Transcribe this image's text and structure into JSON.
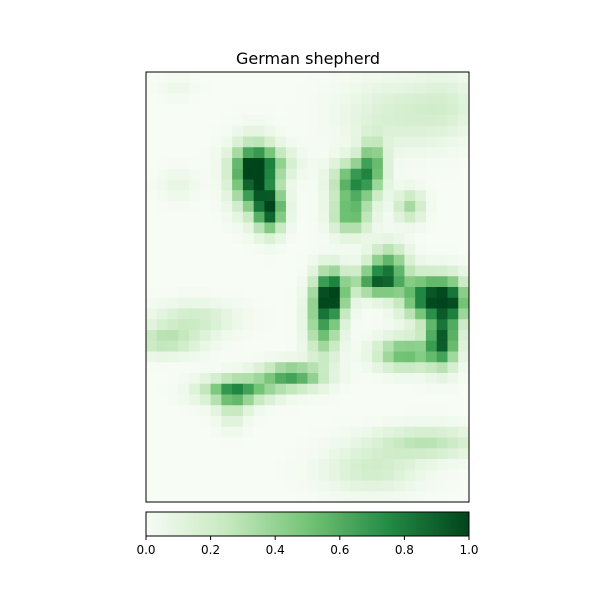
{
  "chart_data": {
    "type": "heatmap",
    "title": "German shepherd",
    "colormap": "Greens",
    "colormap_stops": [
      "#f7fcf5",
      "#c7e9c0",
      "#74c476",
      "#238b45",
      "#00441b"
    ],
    "value_range": [
      0,
      1
    ],
    "axes_ticks_visible": false,
    "colorbar": {
      "orientation": "horizontal",
      "placement": "bottom",
      "ticks": [
        0.0,
        0.2,
        0.4,
        0.6,
        0.8,
        1.0
      ],
      "tick_labels": [
        "0.0",
        "0.2",
        "0.4",
        "0.6",
        "0.8",
        "1.0"
      ]
    },
    "grid_size": [
      40,
      30
    ],
    "hotspots": [
      {
        "col": 10.0,
        "row": 9.8,
        "intensity": 0.95,
        "sigma_col": 1.3,
        "sigma_row": 2.0
      },
      {
        "col": 11.5,
        "row": 12.8,
        "intensity": 0.9,
        "sigma_col": 0.9,
        "sigma_row": 1.4
      },
      {
        "col": 11.0,
        "row": 8.5,
        "intensity": 0.4,
        "sigma_col": 1.8,
        "sigma_row": 1.0
      },
      {
        "col": 19.5,
        "row": 10.2,
        "intensity": 0.72,
        "sigma_col": 1.4,
        "sigma_row": 1.3
      },
      {
        "col": 21.0,
        "row": 8.3,
        "intensity": 0.5,
        "sigma_col": 0.8,
        "sigma_row": 1.4
      },
      {
        "col": 19.0,
        "row": 13.3,
        "intensity": 0.55,
        "sigma_col": 1.2,
        "sigma_row": 1.2
      },
      {
        "col": 24.5,
        "row": 12.5,
        "intensity": 0.35,
        "sigma_col": 0.9,
        "sigma_row": 1.0
      },
      {
        "col": 17.2,
        "row": 20.6,
        "intensity": 0.95,
        "sigma_col": 1.0,
        "sigma_row": 1.5
      },
      {
        "col": 16.5,
        "row": 23.5,
        "intensity": 0.55,
        "sigma_col": 1.0,
        "sigma_row": 2.2
      },
      {
        "col": 21.5,
        "row": 19.5,
        "intensity": 0.7,
        "sigma_col": 1.5,
        "sigma_row": 0.9
      },
      {
        "col": 22.5,
        "row": 18.0,
        "intensity": 0.55,
        "sigma_col": 1.2,
        "sigma_row": 1.3
      },
      {
        "col": 26.5,
        "row": 21.0,
        "intensity": 0.93,
        "sigma_col": 1.8,
        "sigma_row": 1.4
      },
      {
        "col": 27.5,
        "row": 25.0,
        "intensity": 0.88,
        "sigma_col": 1.0,
        "sigma_row": 1.6
      },
      {
        "col": 24.0,
        "row": 26.2,
        "intensity": 0.55,
        "sigma_col": 1.8,
        "sigma_row": 1.0
      },
      {
        "col": 28.5,
        "row": 21.5,
        "intensity": 0.45,
        "sigma_col": 1.0,
        "sigma_row": 1.4
      },
      {
        "col": 13.5,
        "row": 28.3,
        "intensity": 0.65,
        "sigma_col": 2.0,
        "sigma_row": 0.8
      },
      {
        "col": 8.5,
        "row": 29.6,
        "intensity": 0.65,
        "sigma_col": 2.2,
        "sigma_row": 0.8
      },
      {
        "col": 8.0,
        "row": 31.0,
        "intensity": 0.25,
        "sigma_col": 1.0,
        "sigma_row": 1.3
      },
      {
        "col": 1.8,
        "row": 25.0,
        "intensity": 0.3,
        "sigma_col": 2.2,
        "sigma_row": 0.9
      },
      {
        "col": 4.5,
        "row": 23.0,
        "intensity": 0.22,
        "sigma_col": 2.5,
        "sigma_row": 1.0
      },
      {
        "col": 26.0,
        "row": 34.5,
        "intensity": 0.28,
        "sigma_col": 3.5,
        "sigma_row": 1.0
      },
      {
        "col": 21.0,
        "row": 37.0,
        "intensity": 0.2,
        "sigma_col": 3.0,
        "sigma_row": 1.4
      },
      {
        "col": 23.5,
        "row": 4.0,
        "intensity": 0.17,
        "sigma_col": 3.5,
        "sigma_row": 2.2
      },
      {
        "col": 28.0,
        "row": 3.0,
        "intensity": 0.12,
        "sigma_col": 2.0,
        "sigma_row": 2.0
      },
      {
        "col": 3.0,
        "row": 1.5,
        "intensity": 0.06,
        "sigma_col": 1.0,
        "sigma_row": 0.7
      },
      {
        "col": 3.0,
        "row": 10.5,
        "intensity": 0.08,
        "sigma_col": 1.2,
        "sigma_row": 1.0
      }
    ]
  }
}
